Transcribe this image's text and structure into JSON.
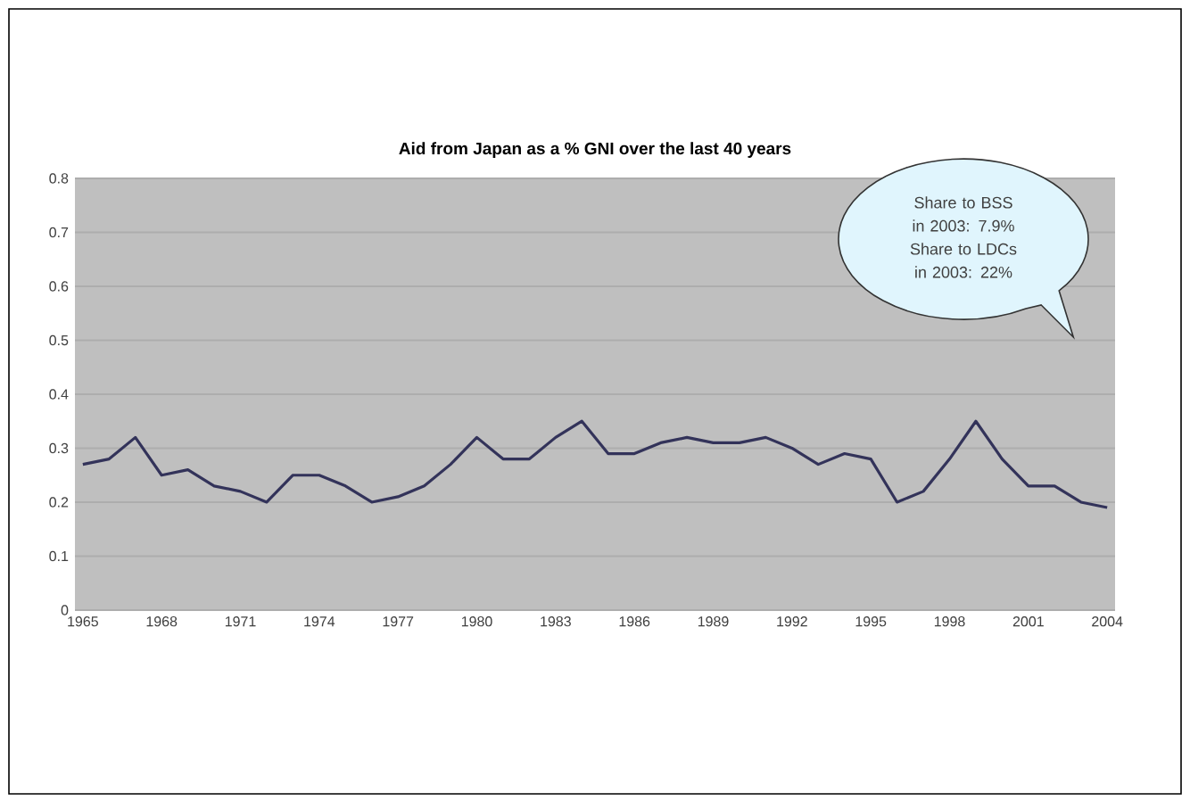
{
  "chart_data": {
    "type": "line",
    "title": "Aid from Japan as a % GNI over the last 40 years",
    "categories": [
      "1965",
      null,
      null,
      "1968",
      null,
      null,
      "1971",
      null,
      null,
      "1974",
      null,
      null,
      "1977",
      null,
      null,
      "1980",
      null,
      null,
      "1983",
      null,
      null,
      "1986",
      null,
      null,
      "1989",
      null,
      null,
      "1992",
      null,
      null,
      "1995",
      null,
      null,
      "1998",
      null,
      null,
      "2001",
      null,
      null,
      "2004"
    ],
    "series": [
      {
        "color": "#33335a",
        "values": [
          0.27,
          0.28,
          0.32,
          0.25,
          0.26,
          0.23,
          0.22,
          0.2,
          0.25,
          0.25,
          0.23,
          0.2,
          0.21,
          0.23,
          0.27,
          0.32,
          0.28,
          0.28,
          0.32,
          0.35,
          0.29,
          0.29,
          0.31,
          0.32,
          0.31,
          0.31,
          0.32,
          0.3,
          0.27,
          0.29,
          0.28,
          0.2,
          0.22,
          0.28,
          0.35,
          0.28,
          0.23,
          0.23,
          0.2,
          0.19
        ]
      }
    ],
    "ylim": [
      0,
      0.8
    ],
    "yticks": [
      {
        "value": 0,
        "label": "0"
      },
      0.1,
      0.2,
      0.3,
      0.4,
      0.5,
      0.6,
      0.7,
      0.8
    ],
    "grid": "y",
    "marker": "none",
    "line_style": "solid",
    "annotations": [
      "Share to BSS in 2003: 7.9%",
      "Share to LDCs in 2003: 22%"
    ]
  }
}
